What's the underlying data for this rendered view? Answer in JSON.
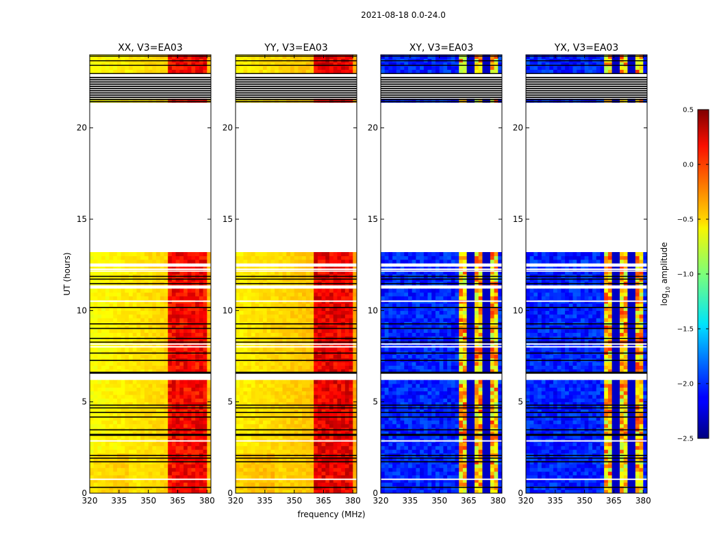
{
  "chart_data": {
    "type": "heatmap",
    "suptitle": "2021-08-18 0.0-24.0",
    "xlabel": "frequency (MHz)",
    "ylabel": "UT (hours)",
    "xlim": [
      320,
      382
    ],
    "ylim": [
      0,
      24
    ],
    "xticks": [
      320,
      335,
      350,
      365,
      380
    ],
    "yticks": [
      0,
      5,
      10,
      15,
      20
    ],
    "high_rfi_band_mhz": [
      360,
      380
    ],
    "flagged_hour_ranges": [
      [
        13.2,
        21.4
      ]
    ],
    "dense_flag_hour_ranges": [
      [
        21.4,
        22.8
      ]
    ],
    "panels": [
      {
        "title": "XX, V3=EA03",
        "kind": "auto",
        "base_log_amp": -0.55,
        "band_log_amp": 0.05
      },
      {
        "title": "YY, V3=EA03",
        "kind": "auto",
        "base_log_amp": -0.5,
        "band_log_amp": 0.1
      },
      {
        "title": "XY, V3=EA03",
        "kind": "cross",
        "base_log_amp": -2.2,
        "band_log_amp": -0.9
      },
      {
        "title": "YX, V3=EA03",
        "kind": "cross",
        "base_log_amp": -2.2,
        "band_log_amp": -0.9
      }
    ],
    "colorbar": {
      "label_main": "log",
      "label_sub": "10",
      "label_rest": " amplitude",
      "range": [
        -2.5,
        0.5
      ],
      "ticks": [
        "0.5",
        "0.0",
        "−0.5",
        "−1.0",
        "−1.5",
        "−2.0",
        "−2.5"
      ],
      "tick_values": [
        0.5,
        0.0,
        -0.5,
        -1.0,
        -1.5,
        -2.0,
        -2.5
      ],
      "colormap": "jet"
    }
  }
}
